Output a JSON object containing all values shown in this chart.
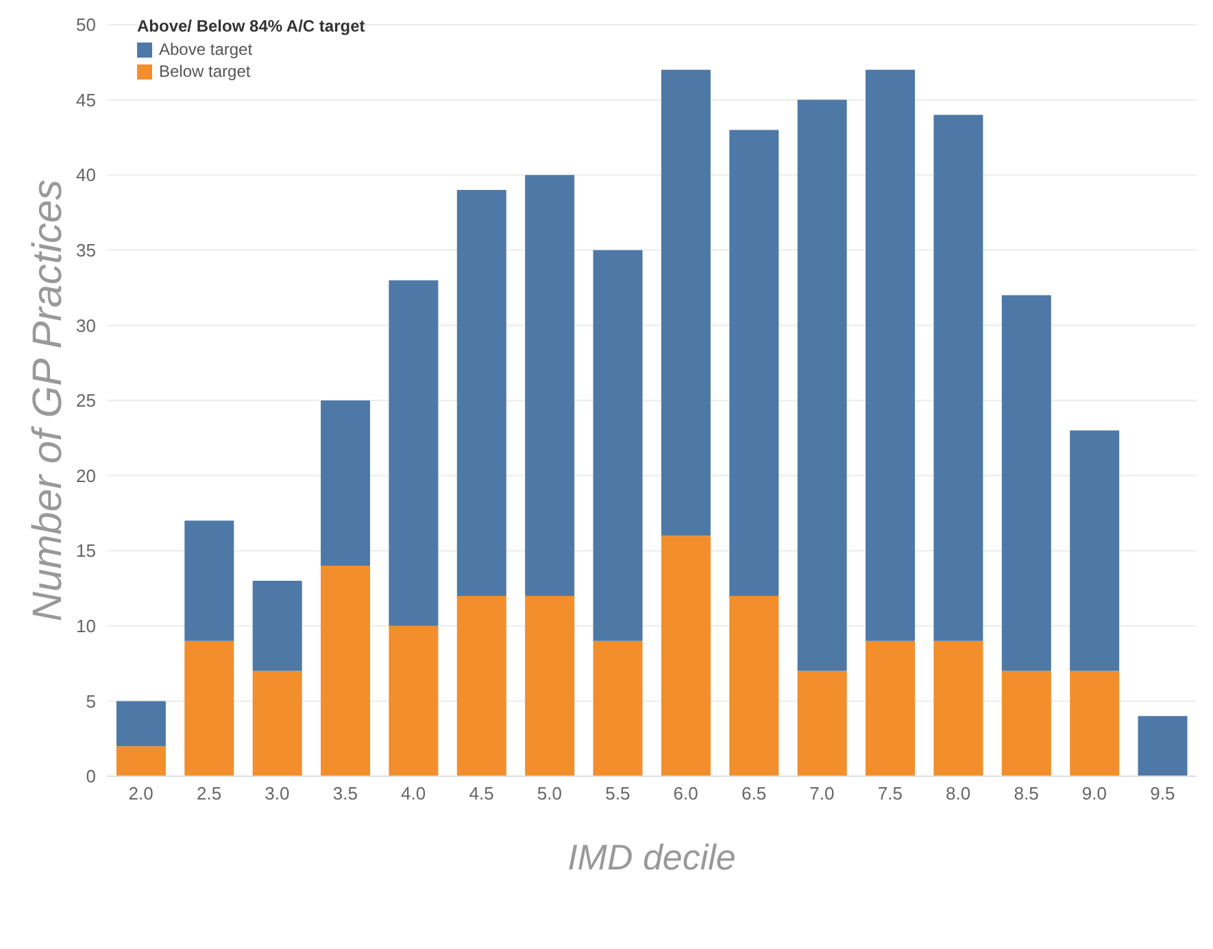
{
  "chart_data": {
    "type": "bar",
    "stacked": true,
    "xlabel": "IMD decile",
    "ylabel": "Number of GP Practices",
    "legend_title": "Above/ Below 84% A/C target",
    "legend": "top left",
    "grid": "y",
    "categories": [
      "2.0",
      "2.5",
      "3.0",
      "3.5",
      "4.0",
      "4.5",
      "5.0",
      "5.5",
      "6.0",
      "6.5",
      "7.0",
      "7.5",
      "8.0",
      "8.5",
      "9.0",
      "9.5"
    ],
    "series": [
      {
        "name": "Below target",
        "color": "#f28e2b",
        "values": [
          2,
          9,
          7,
          14,
          10,
          12,
          12,
          9,
          16,
          12,
          7,
          9,
          9,
          7,
          7,
          null
        ]
      },
      {
        "name": "Above target",
        "color": "#4e79a7",
        "values": [
          3,
          8,
          6,
          11,
          23,
          27,
          28,
          26,
          31,
          31,
          38,
          38,
          35,
          25,
          16,
          4
        ]
      }
    ],
    "ylim": [
      0,
      50
    ],
    "yticks": [
      0,
      5,
      10,
      15,
      20,
      25,
      30,
      35,
      40,
      45,
      50
    ]
  }
}
